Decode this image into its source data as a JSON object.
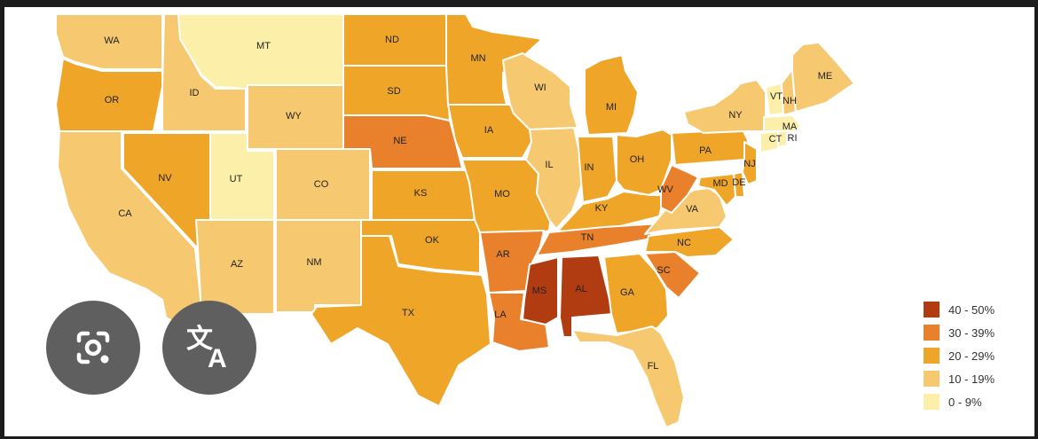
{
  "colors": {
    "c40_50": "#b23c12",
    "c30_39": "#e9802b",
    "c20_29": "#efa628",
    "c10_19": "#f6c970",
    "c0_9": "#fcefaa"
  },
  "legend": [
    {
      "key": "c40_50",
      "label": "40 - 50%"
    },
    {
      "key": "c30_39",
      "label": "30 - 39%"
    },
    {
      "key": "c20_29",
      "label": "20 - 29%"
    },
    {
      "key": "c10_19",
      "label": "10 - 19%"
    },
    {
      "key": "c0_9",
      "label": "0 - 9%"
    }
  ],
  "states": {
    "WA": "c10_19",
    "OR": "c20_29",
    "CA": "c10_19",
    "ID": "c10_19",
    "NV": "c20_29",
    "MT": "c0_9",
    "WY": "c10_19",
    "UT": "c0_9",
    "CO": "c10_19",
    "AZ": "c10_19",
    "NM": "c10_19",
    "ND": "c20_29",
    "SD": "c20_29",
    "NE": "c30_39",
    "KS": "c20_29",
    "OK": "c20_29",
    "TX": "c20_29",
    "MN": "c20_29",
    "IA": "c20_29",
    "MO": "c20_29",
    "AR": "c30_39",
    "LA": "c30_39",
    "WI": "c10_19",
    "IL": "c10_19",
    "MI": "c20_29",
    "IN": "c20_29",
    "OH": "c20_29",
    "KY": "c20_29",
    "TN": "c30_39",
    "MS": "c40_50",
    "AL": "c40_50",
    "GA": "c20_29",
    "FL": "c10_19",
    "SC": "c30_39",
    "NC": "c20_29",
    "VA": "c10_19",
    "WV": "c30_39",
    "PA": "c20_29",
    "NY": "c10_19",
    "NJ": "c20_29",
    "DE": "c20_29",
    "MD": "c20_29",
    "CT": "c0_9",
    "RI": "c0_9",
    "MA": "c0_9",
    "VT": "c0_9",
    "NH": "c10_19",
    "ME": "c10_19"
  },
  "labels": {
    "WA": "WA",
    "OR": "OR",
    "CA": "CA",
    "ID": "ID",
    "NV": "NV",
    "MT": "MT",
    "WY": "WY",
    "UT": "UT",
    "CO": "CO",
    "AZ": "AZ",
    "NM": "NM",
    "ND": "ND",
    "SD": "SD",
    "NE": "NE",
    "KS": "KS",
    "OK": "OK",
    "TX": "TX",
    "MN": "MN",
    "IA": "IA",
    "MO": "MO",
    "AR": "AR",
    "LA": "LA",
    "WI": "WI",
    "IL": "IL",
    "MI": "MI",
    "IN": "IN",
    "OH": "OH",
    "KY": "KY",
    "TN": "TN",
    "MS": "MS",
    "AL": "AL",
    "GA": "GA",
    "FL": "FL",
    "SC": "SC",
    "NC": "NC",
    "VA": "VA",
    "WV": "WV",
    "PA": "PA",
    "NY": "NY",
    "NJ": "NJ",
    "DE": "DE",
    "MD": "MD",
    "CT": "CT",
    "RI": "RI",
    "MA": "MA",
    "VT": "VT",
    "NH": "NH",
    "ME": "ME"
  },
  "overlay_buttons": [
    {
      "name": "lens-search-button",
      "icon": "camera-lens-icon"
    },
    {
      "name": "translate-button",
      "icon": "translate-icon"
    }
  ]
}
